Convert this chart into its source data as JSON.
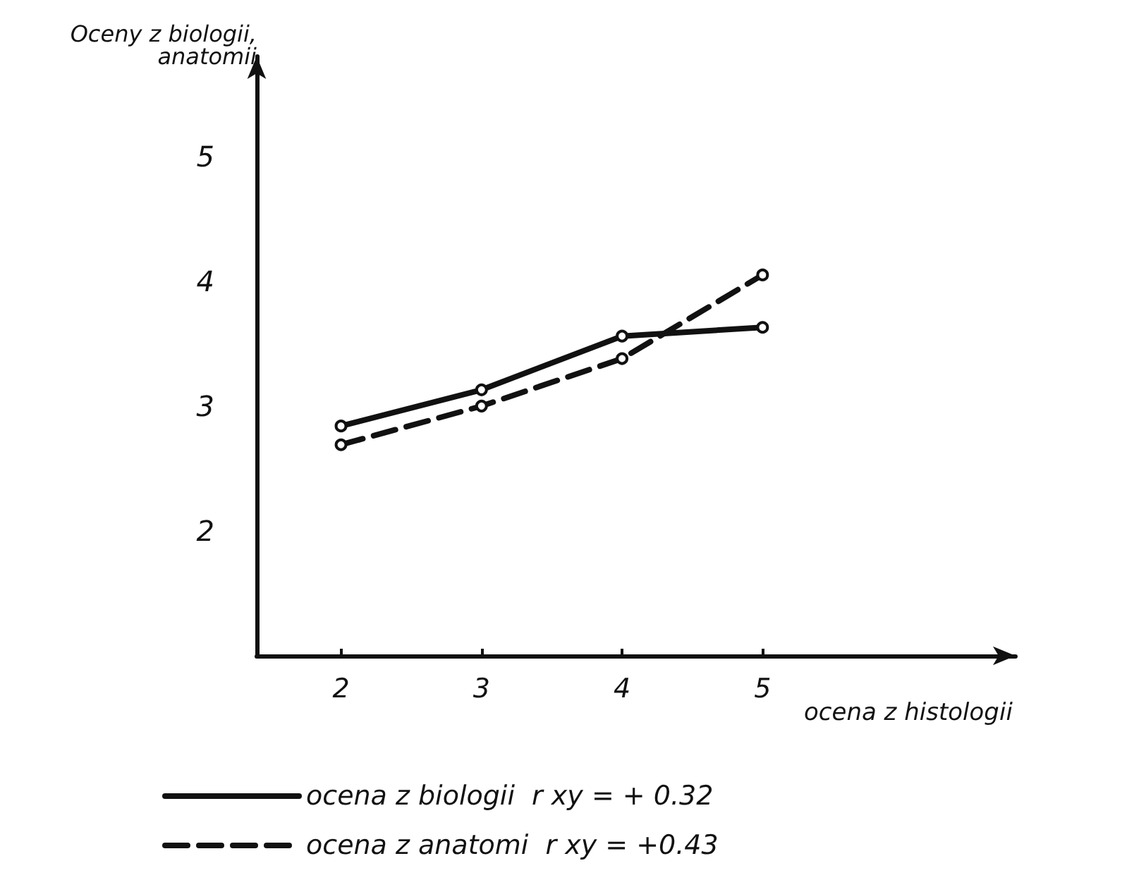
{
  "chart_data": {
    "type": "line",
    "xlabel": "ocena z histologii",
    "ylabel": "Oceny z biologii,\nanatomii",
    "x": [
      2,
      3,
      4,
      5
    ],
    "series": [
      {
        "name": "ocena z biologii  r xy = + 0.32",
        "color": "#111111",
        "values": [
          2.84,
          3.13,
          3.56,
          3.63
        ],
        "line_style": "solid"
      },
      {
        "name": "ocena z anatomi  r xy = +0.43",
        "color": "#111111",
        "values": [
          2.69,
          3.0,
          3.38,
          4.05
        ],
        "line_style": "dashed"
      }
    ],
    "xlim": [
      1.4,
      6.8
    ],
    "xticks": [
      2,
      3,
      4,
      5
    ],
    "ylim": [
      1,
      5.8
    ],
    "yticks": [
      2,
      3,
      4,
      5
    ],
    "marker": "circle",
    "grid": false,
    "legend": "bottom"
  }
}
